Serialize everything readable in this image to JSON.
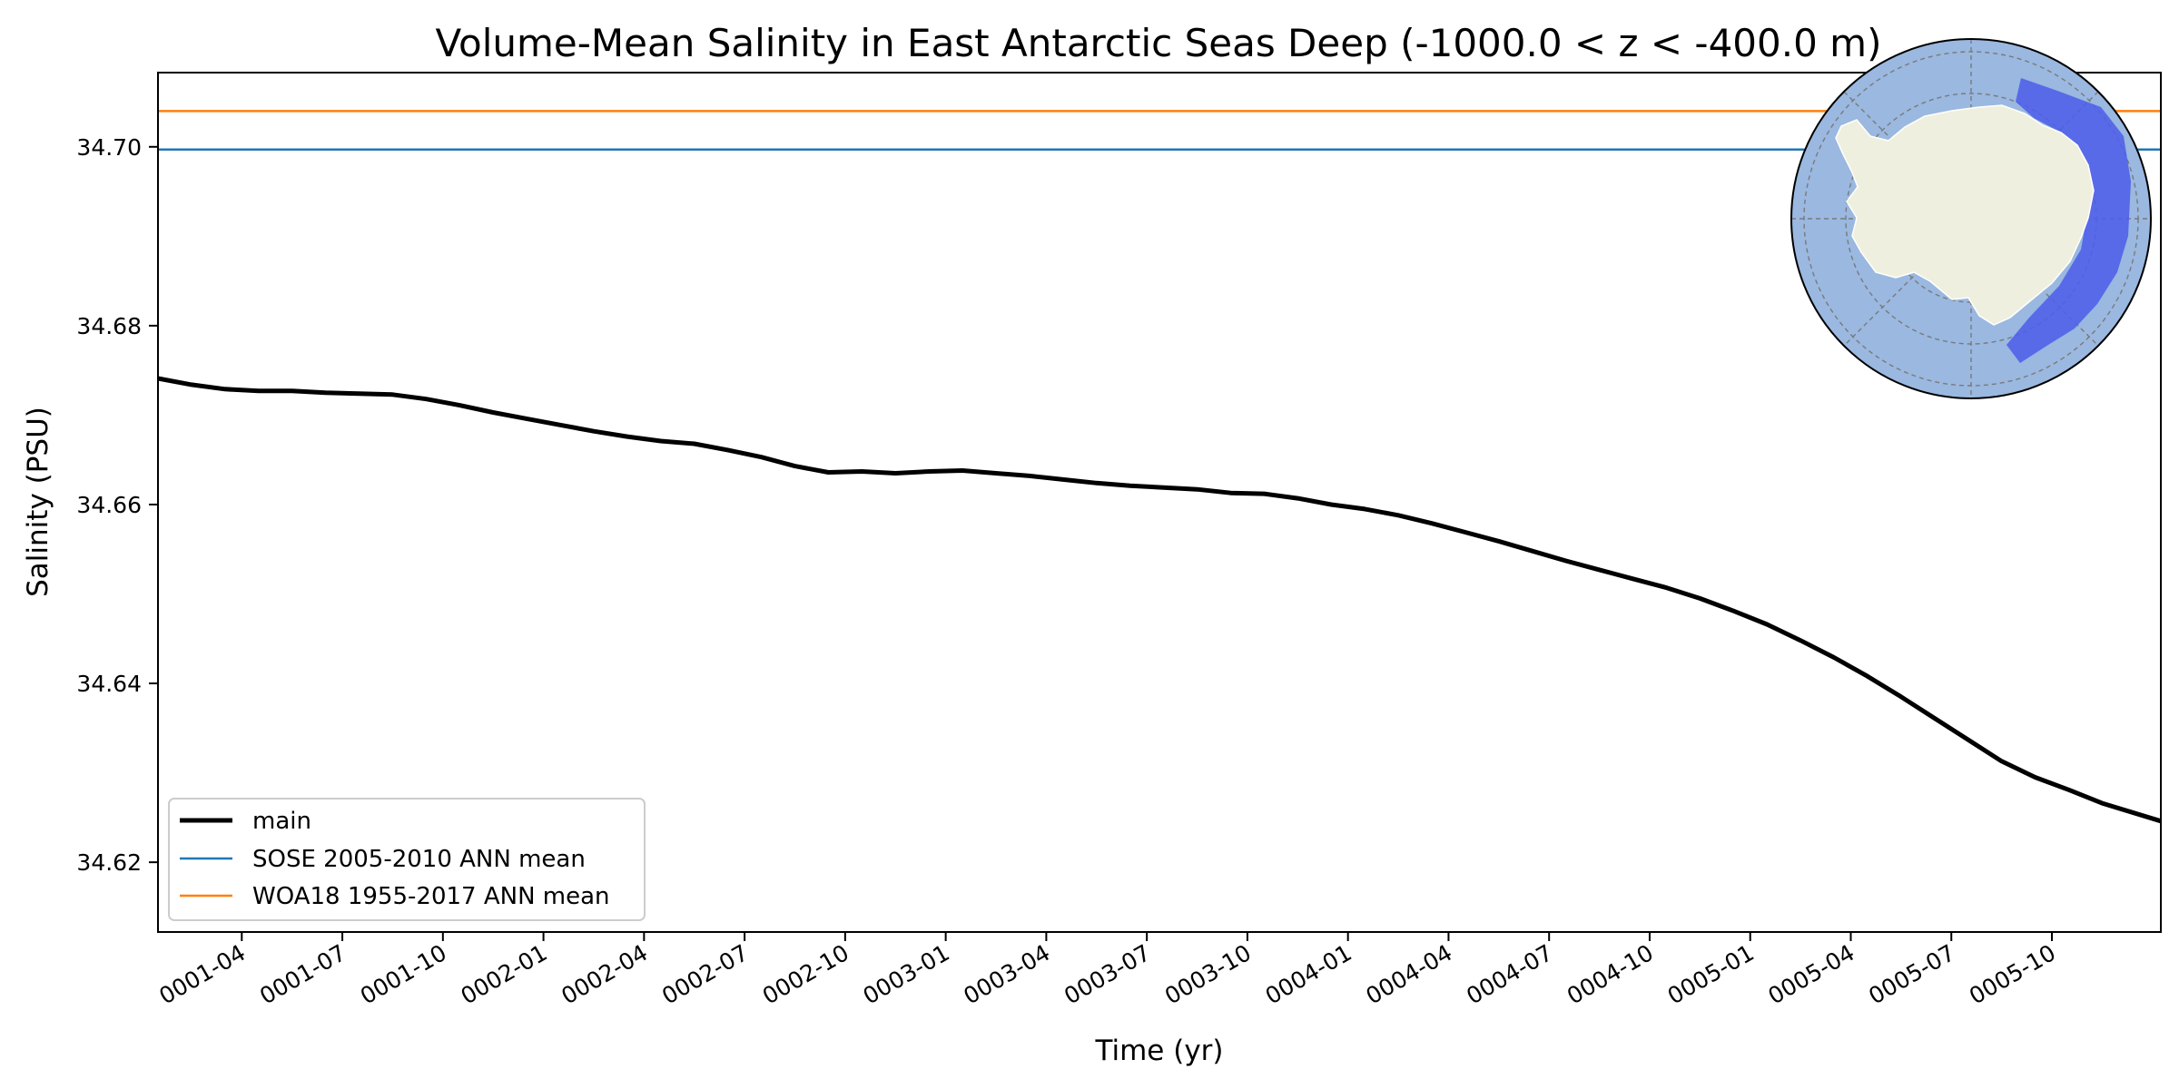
{
  "chart_data": {
    "type": "line",
    "title": "Volume-Mean Salinity in East Antarctic Seas Deep (-1000.0 < z < -400.0 m)",
    "xlabel": "Time (yr)",
    "ylabel": "Salinity (PSU)",
    "xlim": [
      0,
      59.75
    ],
    "ylim": [
      34.6122,
      34.7083
    ],
    "x_ticks": [
      {
        "label": "0001-04",
        "value": 2.5
      },
      {
        "label": "0001-07",
        "value": 5.5
      },
      {
        "label": "0001-10",
        "value": 8.5
      },
      {
        "label": "0002-01",
        "value": 11.5
      },
      {
        "label": "0002-04",
        "value": 14.5
      },
      {
        "label": "0002-07",
        "value": 17.5
      },
      {
        "label": "0002-10",
        "value": 20.5
      },
      {
        "label": "0003-01",
        "value": 23.5
      },
      {
        "label": "0003-04",
        "value": 26.5
      },
      {
        "label": "0003-07",
        "value": 29.5
      },
      {
        "label": "0003-10",
        "value": 32.5
      },
      {
        "label": "0004-01",
        "value": 35.5
      },
      {
        "label": "0004-04",
        "value": 38.5
      },
      {
        "label": "0004-07",
        "value": 41.5
      },
      {
        "label": "0004-10",
        "value": 44.5
      },
      {
        "label": "0005-01",
        "value": 47.5
      },
      {
        "label": "0005-04",
        "value": 50.5
      },
      {
        "label": "0005-07",
        "value": 53.5
      },
      {
        "label": "0005-10",
        "value": 56.5
      }
    ],
    "y_ticks": [
      {
        "label": "34.62",
        "value": 34.62
      },
      {
        "label": "34.64",
        "value": 34.64
      },
      {
        "label": "34.66",
        "value": 34.66
      },
      {
        "label": "34.68",
        "value": 34.68
      },
      {
        "label": "34.70",
        "value": 34.7
      }
    ],
    "series": [
      {
        "name": "main",
        "color": "#000000",
        "x": [
          0,
          1,
          2,
          3,
          4,
          5,
          6,
          7,
          8,
          9,
          10,
          11,
          12,
          13,
          14,
          15,
          16,
          17,
          18,
          19,
          20,
          21,
          22,
          23,
          24,
          25,
          26,
          27,
          28,
          29,
          30,
          31,
          32,
          33,
          34,
          35,
          36,
          37,
          38,
          39,
          40,
          41,
          42,
          43,
          44,
          45,
          46,
          47,
          48,
          49,
          50,
          51,
          52,
          53,
          54,
          55,
          56,
          57,
          58,
          59.75
        ],
        "values": [
          34.6741,
          34.6734,
          34.6729,
          34.6727,
          34.6727,
          34.6725,
          34.6724,
          34.6723,
          34.6718,
          34.6711,
          34.6703,
          34.6696,
          34.6689,
          34.6682,
          34.6676,
          34.6671,
          34.6668,
          34.6661,
          34.6653,
          34.6643,
          34.6636,
          34.6637,
          34.6635,
          34.6637,
          34.6638,
          34.6635,
          34.6632,
          34.6628,
          34.6624,
          34.6621,
          34.6619,
          34.6617,
          34.6613,
          34.6612,
          34.6607,
          34.66,
          34.6595,
          34.6588,
          34.6579,
          34.6569,
          34.6559,
          34.6548,
          34.6537,
          34.6527,
          34.6517,
          34.6507,
          34.6495,
          34.6481,
          34.6466,
          34.6448,
          34.6429,
          34.6408,
          34.6385,
          34.6361,
          34.6337,
          34.6313,
          34.6295,
          34.6281,
          34.6266,
          34.6246
        ]
      },
      {
        "name": "SOSE 2005-2010 ANN mean",
        "color": "#1f77b4",
        "x": [
          0,
          59.75
        ],
        "values": [
          34.6997,
          34.6997
        ]
      },
      {
        "name": "WOA18 1955-2017 ANN mean",
        "color": "#ff7f0e",
        "x": [
          0,
          59.75
        ],
        "values": [
          34.704,
          34.704
        ]
      }
    ],
    "legend": {
      "placement": "lower-left",
      "entries": [
        "main",
        "SOSE 2005-2010 ANN mean",
        "WOA18 1955-2017 ANN mean"
      ]
    },
    "inset_map": {
      "placement": "top-right",
      "description_icon": "antarctica-polar-map-icon",
      "ocean_color": "#9ab8e0",
      "land_color": "#efefdf",
      "region_color": "#4f5fe8"
    },
    "grid": false
  }
}
